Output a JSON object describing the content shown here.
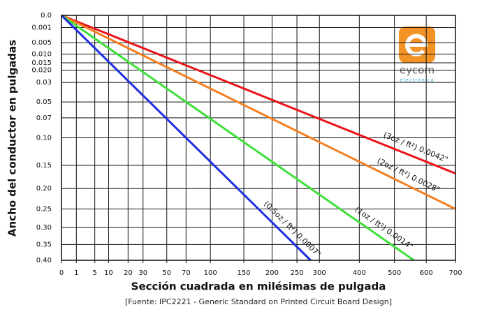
{
  "chart_data": {
    "type": "line",
    "x_label": "Sección cuadrada en milésimas de pulgada",
    "y_label": "Ancho del conductor en pulgadas",
    "note": "[Fuente: IPC2221 - Generic Standard on Printed Circuit Board Design]",
    "x_scale": "sqrt",
    "y_scale": "sqrt",
    "y_reversed": true,
    "grid": true,
    "xlim": [
      0,
      700
    ],
    "ylim": [
      0,
      0.4
    ],
    "xticks": [
      0,
      1,
      5,
      10,
      20,
      30,
      50,
      70,
      100,
      150,
      200,
      250,
      300,
      400,
      500,
      600,
      700
    ],
    "yticks": [
      {
        "value": 0,
        "label": "0.0"
      },
      0.001,
      0.005,
      {
        "value": 0.01,
        "label": "0.010"
      },
      0.015,
      {
        "value": 0.02,
        "label": "0.020"
      },
      0.03,
      0.05,
      0.07,
      {
        "value": 0.1,
        "label": "0.10"
      },
      0.15,
      {
        "value": 0.2,
        "label": "0.20"
      },
      0.25,
      {
        "value": 0.3,
        "label": "0.30"
      },
      0.35,
      {
        "value": 0.4,
        "label": "0.40"
      }
    ],
    "series": [
      {
        "name": "(3oz / ft²) 0.0042\"",
        "color": "#e8141a",
        "x": [
          0,
          700
        ],
        "values": [
          0,
          0.1667
        ]
      },
      {
        "name": "(2oz / ft²) 0.0028\"",
        "color": "#f57f20",
        "x": [
          0,
          700
        ],
        "values": [
          0,
          0.25
        ]
      },
      {
        "name": "(1oz / ft²) 0.0014\"",
        "color": "#3ee03a",
        "x": [
          0,
          560
        ],
        "values": [
          0,
          0.4
        ]
      },
      {
        "name": "(0.5oz / ft²) 0.0007\"",
        "color": "#1e2ee0",
        "x": [
          0,
          280
        ],
        "values": [
          0,
          0.4
        ]
      }
    ]
  },
  "logo": {
    "name": "eycom",
    "tagline": "electrónica"
  }
}
